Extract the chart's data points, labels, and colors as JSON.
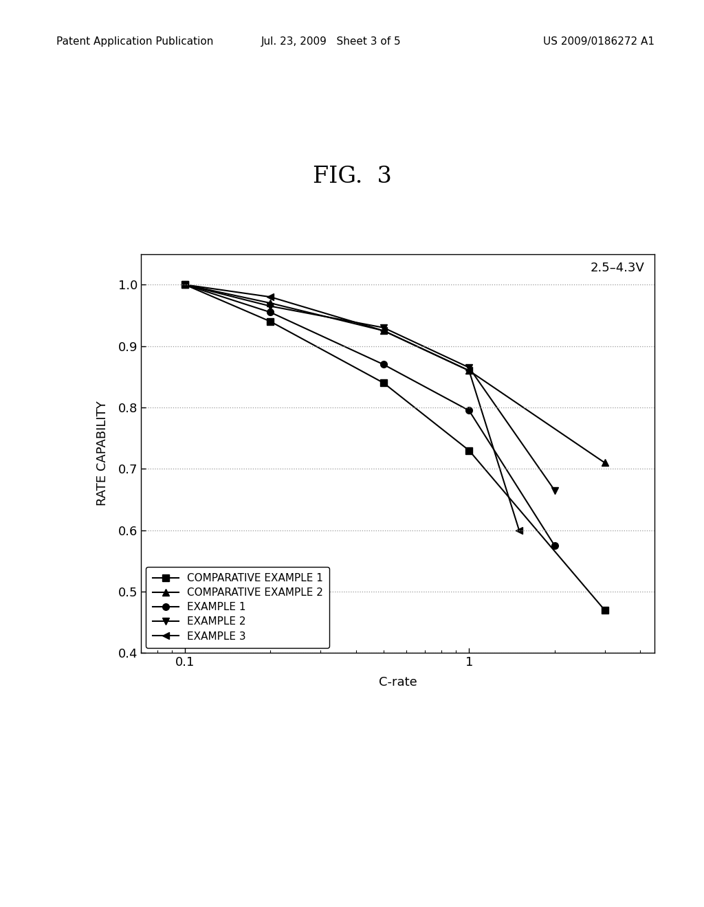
{
  "title": "FIG.  3",
  "xlabel": "C-rate",
  "ylabel": "RATE CAPABILITY",
  "annotation": "2.5–4.3V",
  "xlim": [
    0.07,
    4.5
  ],
  "ylim": [
    0.4,
    1.05
  ],
  "yticks": [
    0.4,
    0.5,
    0.6,
    0.7,
    0.8,
    0.9,
    1.0
  ],
  "series": [
    {
      "label": "COMPARATIVE EXAMPLE 1",
      "marker": "s",
      "x": [
        0.1,
        0.2,
        0.5,
        1.0,
        3.0
      ],
      "y": [
        1.0,
        0.94,
        0.84,
        0.73,
        0.47
      ]
    },
    {
      "label": "COMPARATIVE EXAMPLE 2",
      "marker": "^",
      "x": [
        0.1,
        0.2,
        0.5,
        1.0,
        3.0
      ],
      "y": [
        1.0,
        0.97,
        0.925,
        0.86,
        0.71
      ]
    },
    {
      "label": "EXAMPLE 1",
      "marker": "o",
      "x": [
        0.1,
        0.2,
        0.5,
        1.0,
        2.0
      ],
      "y": [
        1.0,
        0.955,
        0.87,
        0.795,
        0.575
      ]
    },
    {
      "label": "EXAMPLE 2",
      "marker": "v",
      "x": [
        0.1,
        0.2,
        0.5,
        1.0,
        2.0
      ],
      "y": [
        1.0,
        0.965,
        0.93,
        0.865,
        0.665
      ]
    },
    {
      "label": "EXAMPLE 3",
      "marker": "<",
      "x": [
        0.1,
        0.2,
        0.5,
        1.0,
        1.5
      ],
      "y": [
        1.0,
        0.98,
        0.925,
        0.86,
        0.6
      ]
    }
  ],
  "line_color": "black",
  "marker_color": "black",
  "marker_size": 7,
  "line_width": 1.5,
  "grid_color": "#999999",
  "background_color": "#ffffff",
  "title_fontsize": 24,
  "label_fontsize": 13,
  "tick_fontsize": 13,
  "legend_fontsize": 11,
  "header_left": "Patent Application Publication",
  "header_mid": "Jul. 23, 2009   Sheet 3 of 5",
  "header_right": "US 2009/0186272 A1",
  "header_fontsize": 11
}
